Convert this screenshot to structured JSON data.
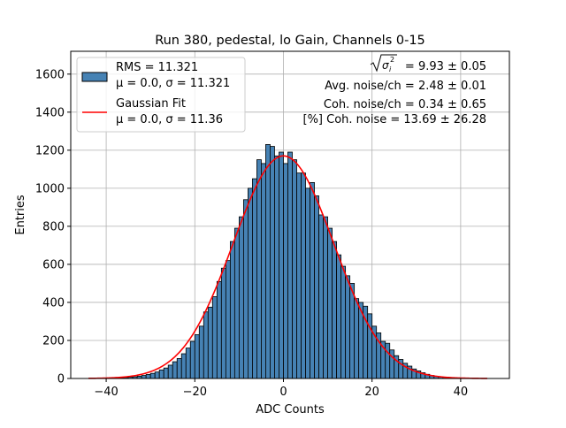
{
  "chart_data": {
    "type": "bar",
    "title": "Run 380, pedestal, lo Gain, Channels 0-15",
    "xlabel": "ADC Counts",
    "ylabel": "Entries",
    "xlim": [
      -48,
      51
    ],
    "ylim": [
      0,
      1720
    ],
    "xticks": [
      "−40",
      "−20",
      "0",
      "20",
      "40"
    ],
    "xtick_values": [
      -40,
      -20,
      0,
      20,
      40
    ],
    "yticks": [
      "0",
      "200",
      "400",
      "600",
      "800",
      "1000",
      "1200",
      "1400",
      "1600"
    ],
    "ytick_values": [
      0,
      200,
      400,
      600,
      800,
      1000,
      1200,
      1400,
      1600
    ],
    "grid": true,
    "legend_position": "top-left",
    "bar_color": "#4682b4",
    "fit_color": "#ff0000",
    "histogram": {
      "bin_width": 1,
      "bin_start": -40,
      "counts": [
        1,
        2,
        3,
        4,
        5,
        7,
        9,
        12,
        16,
        21,
        27,
        34,
        45,
        55,
        70,
        88,
        105,
        130,
        160,
        195,
        230,
        275,
        350,
        375,
        430,
        510,
        580,
        620,
        720,
        790,
        850,
        940,
        1000,
        1050,
        1150,
        1130,
        1230,
        1220,
        1170,
        1190,
        1130,
        1190,
        1150,
        1080,
        1080,
        1000,
        1030,
        960,
        860,
        850,
        790,
        720,
        650,
        590,
        540,
        500,
        420,
        400,
        380,
        340,
        275,
        240,
        195,
        185,
        150,
        120,
        100,
        80,
        65,
        50,
        40,
        30,
        22,
        16,
        12,
        9,
        6,
        4,
        3,
        2,
        1
      ]
    },
    "fit": {
      "mean": 0.0,
      "sigma": 11.36,
      "amplitude": 1170,
      "x_range": [
        -44,
        46
      ]
    },
    "legend": [
      {
        "marker": "patch",
        "line1": "RMS = 11.321",
        "line2": "μ = 0.0, σ = 11.321"
      },
      {
        "marker": "line",
        "line1": "Gaussian Fit",
        "line2": "μ = 0.0, σ = 11.36"
      }
    ],
    "annotations": [
      "= 9.93 ± 0.05",
      "Avg. noise/ch = 2.48 ± 0.01",
      "Coh. noise/ch = 0.34 ± 0.65",
      "[%] Coh. noise = 13.69 ± 26.28"
    ]
  }
}
